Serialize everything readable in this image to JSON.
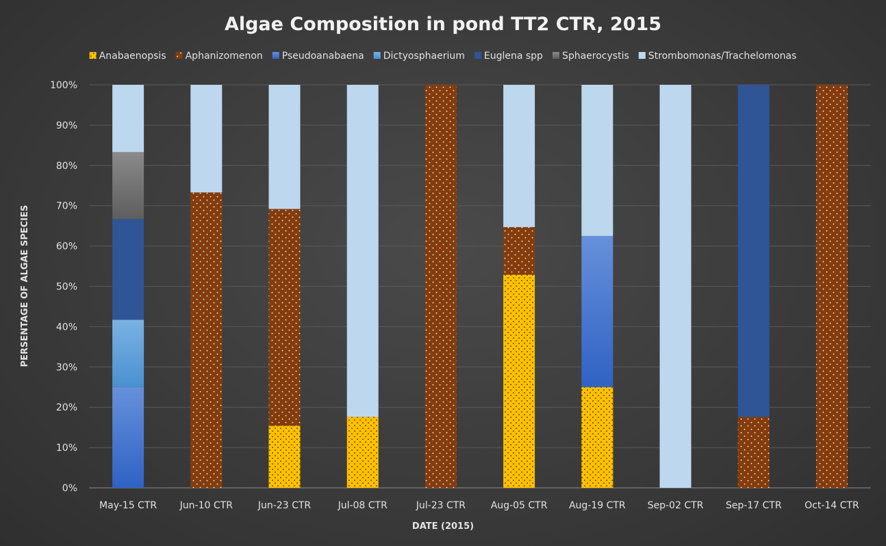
{
  "chart_data": {
    "type": "bar",
    "stacked": true,
    "percent": true,
    "title": "Algae Composition in pond TT2 CTR, 2015",
    "xlabel": "DATE (2015)",
    "ylabel": "PERSENTAGE OF ALGAE SPECIES",
    "ylim": [
      0,
      100
    ],
    "yticks": [
      "0%",
      "10%",
      "20%",
      "30%",
      "40%",
      "50%",
      "60%",
      "70%",
      "80%",
      "90%",
      "100%"
    ],
    "legend_position": "top",
    "grid": true,
    "categories": [
      "May-15 CTR",
      "Jun-10 CTR",
      "Jun-23 CTR",
      "Jul-08 CTR",
      "Jul-23 CTR",
      "Aug-05 CTR",
      "Aug-19 CTR",
      "Sep-02 CTR",
      "Sep-17 CTR",
      "Oct-14 CTR"
    ],
    "series": [
      {
        "name": "Anabaenopsis",
        "color": "#FFC000",
        "pattern": "dots-dark",
        "values": [
          0,
          0,
          15.4,
          17.6,
          0,
          52.9,
          25,
          0,
          0,
          0
        ]
      },
      {
        "name": "Aphanizomenon",
        "color": "#843C0C",
        "pattern": "dots-light",
        "values": [
          0,
          73.3,
          53.8,
          0,
          100,
          11.8,
          0,
          0,
          17.6,
          100
        ]
      },
      {
        "name": "Pseudoanabaena",
        "color": "#3E6FC9",
        "pattern": "gradient",
        "values": [
          25,
          0,
          0,
          0,
          0,
          0,
          37.5,
          0,
          0,
          0
        ]
      },
      {
        "name": "Dictyosphaerium",
        "color": "#5B9BD5",
        "pattern": "gradient",
        "values": [
          16.7,
          0,
          0,
          0,
          0,
          0,
          0,
          0,
          0,
          0
        ]
      },
      {
        "name": "Euglena spp",
        "color": "#2F5597",
        "pattern": "solid",
        "values": [
          25,
          0,
          0,
          0,
          0,
          0,
          0,
          0,
          82.4,
          0
        ]
      },
      {
        "name": "Sphaerocystis",
        "color": "#7F7F7F",
        "pattern": "gradient",
        "values": [
          16.6,
          0,
          0,
          0,
          0,
          0,
          0,
          0,
          0,
          0
        ]
      },
      {
        "name": "Strombomonas/Trachelomonas",
        "color": "#BDD7EE",
        "pattern": "solid",
        "values": [
          16.7,
          26.7,
          30.8,
          82.4,
          0,
          35.3,
          37.5,
          100,
          0,
          0
        ]
      }
    ]
  }
}
